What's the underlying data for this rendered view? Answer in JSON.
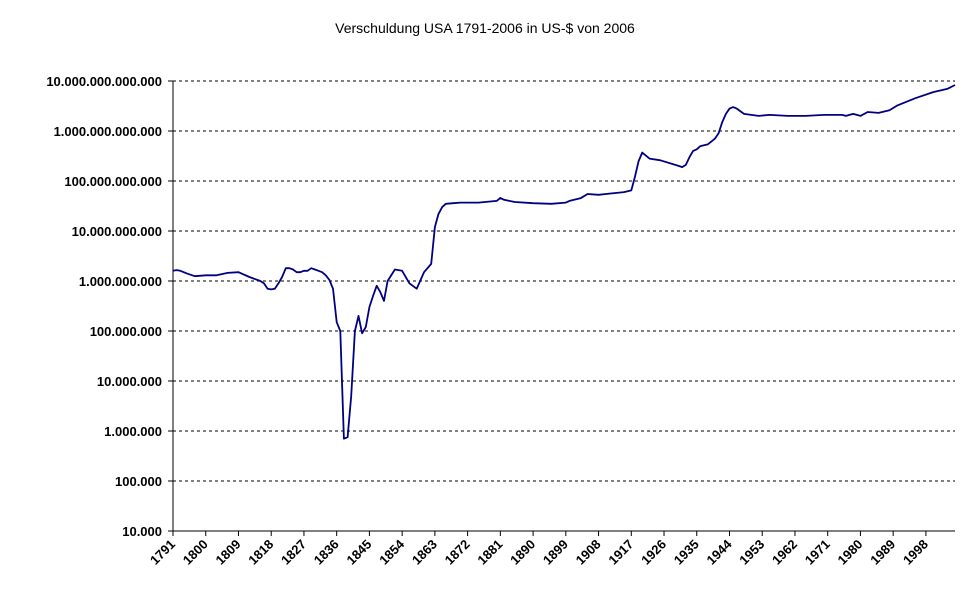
{
  "chart_data": {
    "type": "line",
    "title": "Verschuldung USA 1791-2006 in US-$ von 2006",
    "xlabel": "",
    "ylabel": "",
    "y_scale": "log",
    "ylim": [
      10000,
      10000000000000
    ],
    "xlim": [
      1791,
      2006
    ],
    "grid": true,
    "legend": "none",
    "line_color": "#000080",
    "y_ticks": [
      {
        "value": 10000,
        "label": "10.000"
      },
      {
        "value": 100000,
        "label": "100.000"
      },
      {
        "value": 1000000,
        "label": "1.000.000"
      },
      {
        "value": 10000000,
        "label": "10.000.000"
      },
      {
        "value": 100000000,
        "label": "100.000.000"
      },
      {
        "value": 1000000000,
        "label": "1.000.000.000"
      },
      {
        "value": 10000000000,
        "label": "10.000.000.000"
      },
      {
        "value": 100000000000,
        "label": "100.000.000.000"
      },
      {
        "value": 1000000000000,
        "label": "1.000.000.000.000"
      },
      {
        "value": 10000000000000,
        "label": "10.000.000.000.000"
      }
    ],
    "x_ticks": [
      {
        "value": 1791,
        "label": "1791"
      },
      {
        "value": 1800,
        "label": "1800"
      },
      {
        "value": 1809,
        "label": "1809"
      },
      {
        "value": 1818,
        "label": "1818"
      },
      {
        "value": 1827,
        "label": "1827"
      },
      {
        "value": 1836,
        "label": "1836"
      },
      {
        "value": 1845,
        "label": "1845"
      },
      {
        "value": 1854,
        "label": "1854"
      },
      {
        "value": 1863,
        "label": "1863"
      },
      {
        "value": 1872,
        "label": "1872"
      },
      {
        "value": 1881,
        "label": "1881"
      },
      {
        "value": 1890,
        "label": "1890"
      },
      {
        "value": 1899,
        "label": "1899"
      },
      {
        "value": 1908,
        "label": "1908"
      },
      {
        "value": 1917,
        "label": "1917"
      },
      {
        "value": 1926,
        "label": "1926"
      },
      {
        "value": 1935,
        "label": "1935"
      },
      {
        "value": 1944,
        "label": "1944"
      },
      {
        "value": 1953,
        "label": "1953"
      },
      {
        "value": 1962,
        "label": "1962"
      },
      {
        "value": 1971,
        "label": "1971"
      },
      {
        "value": 1980,
        "label": "1980"
      },
      {
        "value": 1989,
        "label": "1989"
      },
      {
        "value": 1998,
        "label": "1998"
      }
    ],
    "series": [
      {
        "x": [
          1791,
          1792,
          1793,
          1795,
          1797,
          1800,
          1803,
          1806,
          1809,
          1812,
          1815,
          1816,
          1817,
          1818,
          1819,
          1820,
          1821,
          1822,
          1823,
          1824,
          1825,
          1826,
          1827,
          1828,
          1829,
          1830,
          1831,
          1832,
          1833,
          1834,
          1835,
          1836,
          1837,
          1838,
          1839,
          1840,
          1841,
          1842,
          1843,
          1844,
          1845,
          1846,
          1847,
          1848,
          1849,
          1850,
          1852,
          1854,
          1856,
          1858,
          1860,
          1862,
          1863,
          1864,
          1865,
          1866,
          1868,
          1870,
          1875,
          1880,
          1881,
          1882,
          1885,
          1890,
          1895,
          1899,
          1900,
          1903,
          1905,
          1908,
          1910,
          1915,
          1917,
          1918,
          1919,
          1920,
          1922,
          1925,
          1930,
          1931,
          1932,
          1933,
          1934,
          1935,
          1936,
          1938,
          1940,
          1941,
          1942,
          1943,
          1944,
          1945,
          1946,
          1948,
          1950,
          1952,
          1955,
          1960,
          1965,
          1970,
          1975,
          1976,
          1977,
          1978,
          1980,
          1982,
          1985,
          1988,
          1990,
          1995,
          2000,
          2004,
          2006
        ],
        "values": [
          1600000000.0,
          1650000000.0,
          1600000000.0,
          1400000000.0,
          1250000000.0,
          1300000000.0,
          1300000000.0,
          1450000000.0,
          1500000000.0,
          1200000000.0,
          1000000000.0,
          900000000.0,
          700000000.0,
          680000000.0,
          700000000.0,
          900000000.0,
          1200000000.0,
          1800000000.0,
          1800000000.0,
          1700000000.0,
          1500000000.0,
          1500000000.0,
          1600000000.0,
          1600000000.0,
          1800000000.0,
          1700000000.0,
          1600000000.0,
          1500000000.0,
          1300000000.0,
          1050000000.0,
          700000000.0,
          150000000.0,
          100000000.0,
          700000.0,
          750000.0,
          5000000.0,
          100000000.0,
          200000000.0,
          90000000.0,
          120000000.0,
          300000000.0,
          500000000.0,
          800000000.0,
          600000000.0,
          400000000.0,
          1000000000.0,
          1700000000.0,
          1600000000.0,
          900000000.0,
          700000000.0,
          1500000000.0,
          2200000000.0,
          12000000000.0,
          22000000000.0,
          30000000000.0,
          35000000000.0,
          36000000000.0,
          37000000000.0,
          37000000000.0,
          40000000000.0,
          46000000000.0,
          42000000000.0,
          38000000000.0,
          36000000000.0,
          35000000000.0,
          37000000000.0,
          40000000000.0,
          45000000000.0,
          55000000000.0,
          53000000000.0,
          55000000000.0,
          60000000000.0,
          65000000000.0,
          120000000000.0,
          250000000000.0,
          370000000000.0,
          280000000000.0,
          260000000000.0,
          200000000000.0,
          190000000000.0,
          210000000000.0,
          300000000000.0,
          400000000000.0,
          430000000000.0,
          500000000000.0,
          540000000000.0,
          700000000000.0,
          900000000000.0,
          1500000000000.0,
          2200000000000.0,
          2800000000000.0,
          3000000000000.0,
          2800000000000.0,
          2200000000000.0,
          2100000000000.0,
          2000000000000.0,
          2100000000000.0,
          2000000000000.0,
          2000000000000.0,
          2100000000000.0,
          2100000000000.0,
          2000000000000.0,
          2100000000000.0,
          2200000000000.0,
          2000000000000.0,
          2400000000000.0,
          2300000000000.0,
          2600000000000.0,
          3200000000000.0,
          4500000000000.0,
          6000000000000.0,
          7000000000000.0,
          8300000000000.0
        ]
      }
    ]
  }
}
